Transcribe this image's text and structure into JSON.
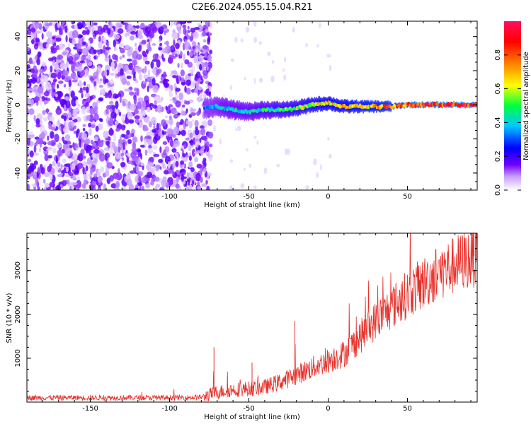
{
  "title": "C2E6.2024.055.15.04.R21",
  "chart_data": [
    {
      "type": "heatmap",
      "xlabel": "Height of straight line (km)",
      "ylabel": "Frequency (Hz)",
      "xlim": [
        -190,
        94
      ],
      "ylim": [
        -50,
        49
      ],
      "xticks": [
        -150,
        -100,
        -50,
        0,
        50
      ],
      "xtick_labels": [
        "-150",
        "-100",
        "-50",
        "0",
        "50"
      ],
      "yticks": [
        -40,
        -20,
        0,
        20,
        40
      ],
      "ytick_labels": [
        "-40",
        "-20",
        "0",
        "20",
        "40"
      ],
      "colorbar": {
        "label": "Normalized spectral amplitude",
        "range": [
          0,
          1
        ],
        "ticks": [
          0.0,
          0.2,
          0.4,
          0.6,
          0.8
        ],
        "tick_labels": [
          "0.0",
          "0.2",
          "0.4",
          "0.6",
          "0.8"
        ],
        "colors": [
          "#ffffff",
          "#b070ff",
          "#6a00ff",
          "#0000ff",
          "#00c0ff",
          "#00ff40",
          "#ffff00",
          "#ff8000",
          "#ff0000",
          "#ff1060"
        ]
      },
      "noise_region": {
        "x_from": -190,
        "x_to": -78,
        "amplitude": 0.25
      },
      "signal_track": {
        "x": [
          -78,
          -70,
          -60,
          -50,
          -40,
          -30,
          -20,
          -10,
          0,
          10,
          20,
          30,
          40,
          50,
          60,
          70,
          80,
          94
        ],
        "frequency": [
          -2,
          -1,
          -3,
          -4,
          -3,
          -3,
          -2,
          0,
          1,
          -1,
          -1,
          -1,
          -1,
          0,
          0,
          0,
          0,
          0
        ],
        "amplitude": [
          0.35,
          0.4,
          0.45,
          0.45,
          0.5,
          0.55,
          0.6,
          0.65,
          0.7,
          0.7,
          0.75,
          0.75,
          0.8,
          0.85,
          0.9,
          0.92,
          0.95,
          0.95
        ]
      }
    },
    {
      "type": "line",
      "xlabel": "Height of straight line (km)",
      "ylabel": "SNR (10 * v/v)",
      "xlim": [
        -190,
        94
      ],
      "ylim": [
        0,
        3850
      ],
      "xticks": [
        -150,
        -100,
        -50,
        0,
        50
      ],
      "xtick_labels": [
        "-150",
        "-100",
        "-50",
        "0",
        "50"
      ],
      "yticks": [
        1000,
        2000,
        3000
      ],
      "ytick_labels": [
        "1000",
        "2000",
        "3000"
      ],
      "series": [
        {
          "color": "#e8302a",
          "x": [
            -190,
            -150,
            -100,
            -80,
            -70,
            -60,
            -50,
            -40,
            -30,
            -20,
            -10,
            0,
            10,
            20,
            30,
            40,
            50,
            60,
            70,
            80,
            90,
            94
          ],
          "y": [
            100,
            100,
            100,
            110,
            230,
            280,
            300,
            340,
            460,
            620,
            780,
            940,
            1100,
            1480,
            1860,
            2160,
            2460,
            2720,
            2960,
            3120,
            3300,
            3350
          ]
        }
      ],
      "peaks": [
        {
          "x": -72,
          "y": 1250
        },
        {
          "x": -48,
          "y": 900
        },
        {
          "x": -21,
          "y": 1850
        },
        {
          "x": 92,
          "y": 3850
        }
      ]
    }
  ]
}
